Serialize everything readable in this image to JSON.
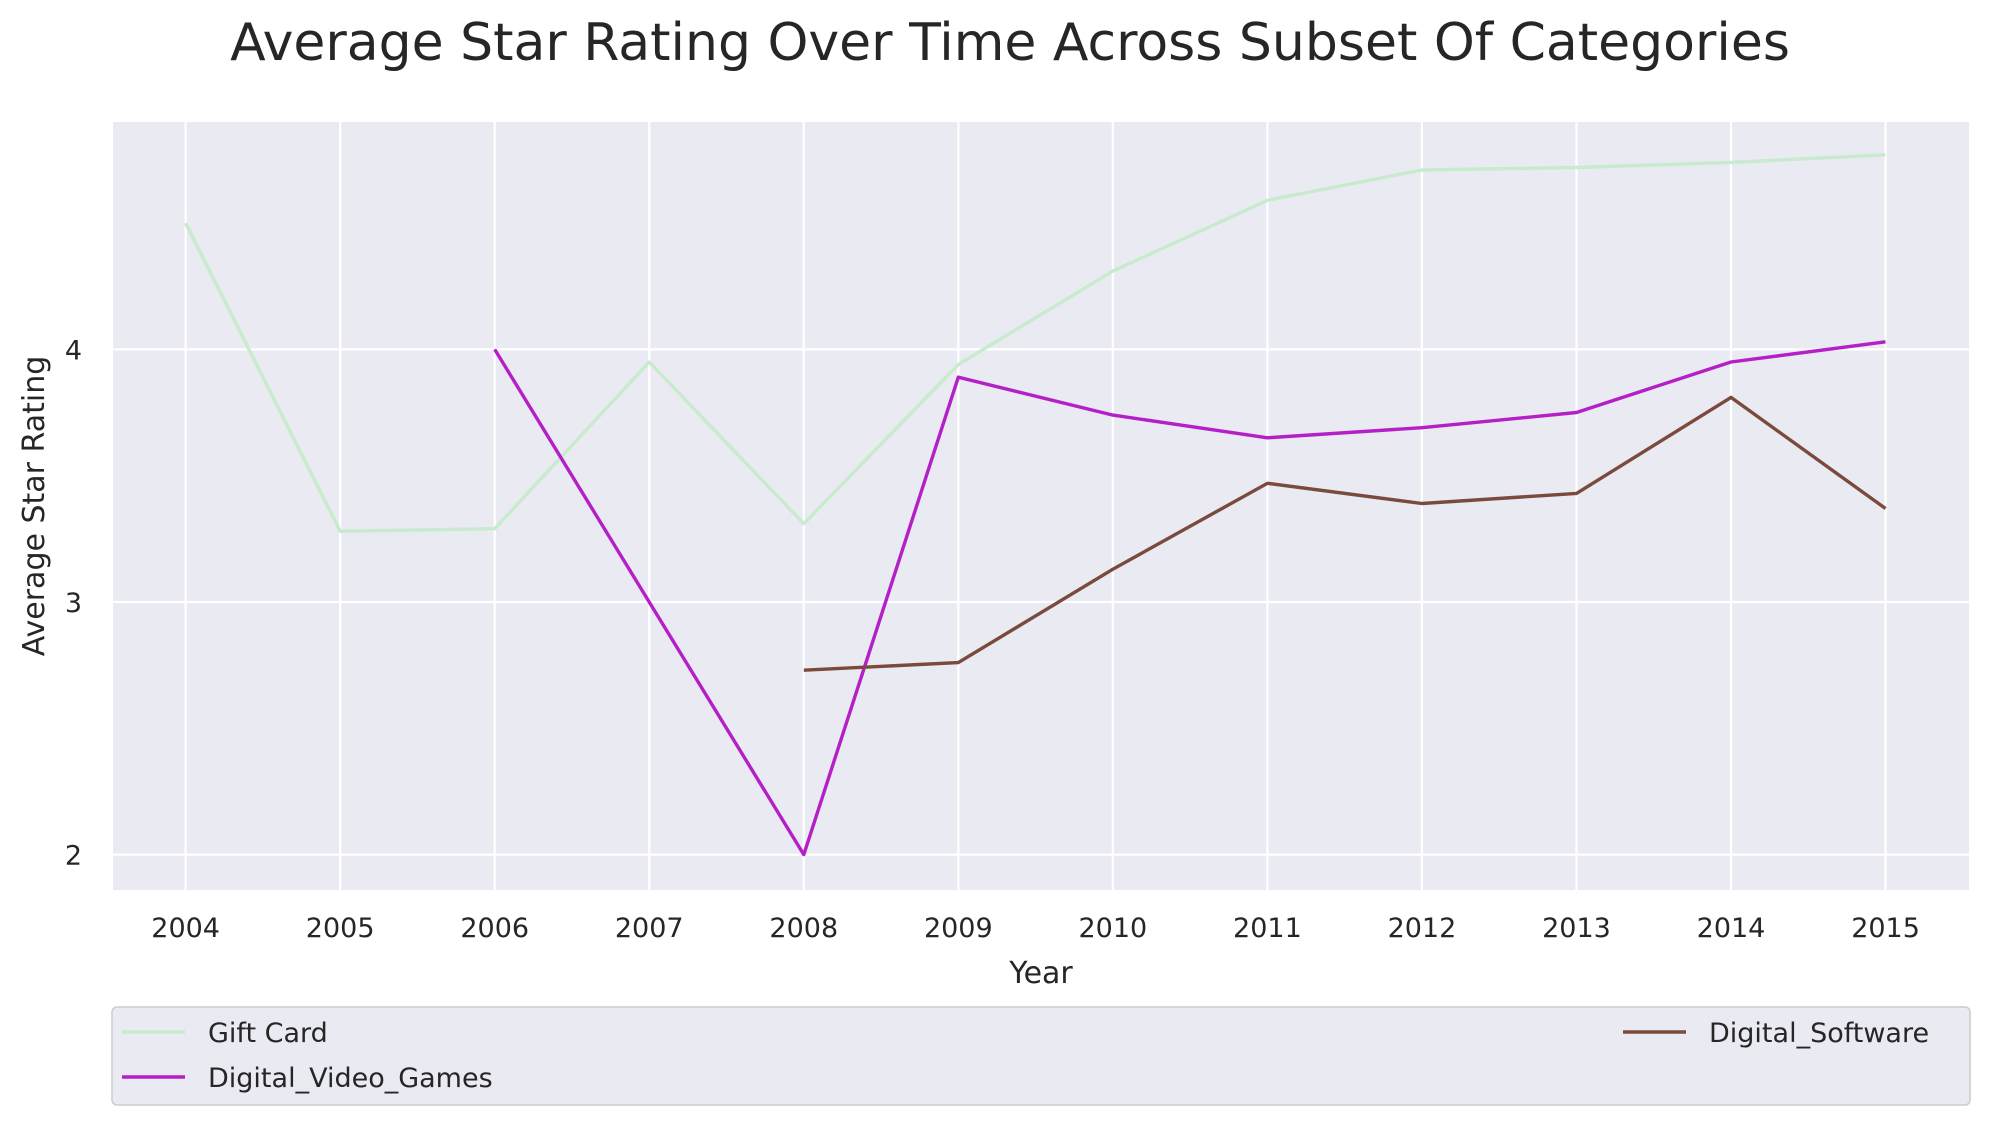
{
  "chart_data": {
    "type": "line",
    "title": "Average Star Rating Over Time Across Subset Of Categories",
    "xlabel": "Year",
    "ylabel": "Average Star Rating",
    "x": [
      2004,
      2005,
      2006,
      2007,
      2008,
      2009,
      2010,
      2011,
      2012,
      2013,
      2014,
      2015
    ],
    "xlim": [
      2003.53,
      2015.54
    ],
    "ylim": [
      1.86,
      4.9
    ],
    "yticks": [
      2,
      3,
      4
    ],
    "grid": true,
    "legend": {
      "placement": "bottom",
      "columns": 2
    },
    "series": [
      {
        "name": "Gift Card",
        "color": "#c7ebcc",
        "values": [
          4.5,
          3.28,
          3.29,
          3.95,
          3.31,
          3.94,
          4.31,
          4.59,
          4.71,
          4.72,
          4.74,
          4.77
        ]
      },
      {
        "name": "Digital_Video_Games",
        "color": "#b41fc8",
        "values": [
          null,
          null,
          4.0,
          3.0,
          2.0,
          3.89,
          3.74,
          3.65,
          3.69,
          3.75,
          3.95,
          4.03
        ]
      },
      {
        "name": "Digital_Software",
        "color": "#7a4a3c",
        "values": [
          null,
          null,
          null,
          null,
          2.73,
          2.76,
          3.13,
          3.47,
          3.39,
          3.43,
          3.81,
          3.37
        ]
      }
    ]
  }
}
